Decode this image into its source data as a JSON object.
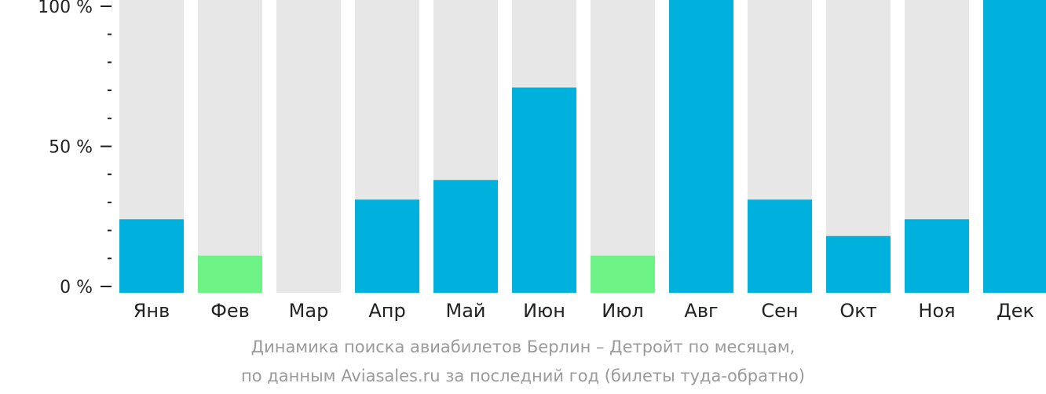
{
  "chart_data": {
    "type": "bar",
    "categories": [
      "Янв",
      "Фев",
      "Мар",
      "Апр",
      "Май",
      "Июн",
      "Июл",
      "Авг",
      "Сен",
      "Окт",
      "Ноя",
      "Дек"
    ],
    "values": [
      24,
      11,
      0,
      31,
      38,
      71,
      11,
      100,
      31,
      18,
      24,
      100
    ],
    "bar_colors": [
      "#00b0dd",
      "#6df286",
      "#00b0dd",
      "#00b0dd",
      "#00b0dd",
      "#00b0dd",
      "#6df286",
      "#00b0dd",
      "#00b0dd",
      "#00b0dd",
      "#00b0dd",
      "#00b0dd"
    ],
    "track_color": "#e7e7e7",
    "ylim": [
      0,
      100
    ],
    "y_ticks": [
      {
        "value": 0,
        "label": "0 %"
      },
      {
        "value": 50,
        "label": "50 %"
      },
      {
        "value": 100,
        "label": "100 %"
      }
    ],
    "y_minor_ticks": [
      10,
      20,
      30,
      40,
      60,
      70,
      80,
      90
    ],
    "grid": false,
    "legend": "none"
  },
  "caption": {
    "line1": "Динамика поиска авиабилетов Берлин – Детройт по месяцам,",
    "line2": "по данным Aviasales.ru за последний год (билеты туда-обратно)"
  }
}
